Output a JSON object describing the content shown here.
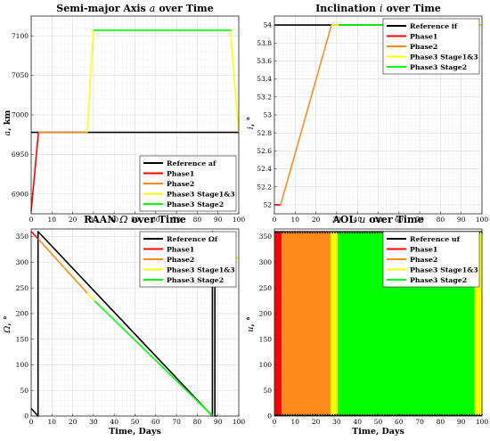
{
  "colors": {
    "reference": "#000000",
    "phase1": "#ff0000",
    "phase2": "#ff8c1a",
    "phase3_stage13": "#ffff00",
    "phase3_stage2": "#00ff00"
  },
  "chart_data": [
    {
      "type": "line",
      "title": "Semi-major Axis a over Time",
      "title_parts": [
        "Semi-major Axis",
        "a",
        "over Time"
      ],
      "xlabel": "",
      "ylabel": "a, km",
      "ylabel_parts": [
        "a",
        ", km"
      ],
      "xlim": [
        0,
        100
      ],
      "ylim": [
        6875,
        7125
      ],
      "xticks": [
        0,
        10,
        20,
        30,
        40,
        50,
        60,
        70,
        80,
        90,
        100
      ],
      "yticks": [
        6900,
        6950,
        7000,
        7050,
        7100
      ],
      "grid": true,
      "legend": "bottom-right",
      "legend_entries": [
        "Reference af",
        "Phase1",
        "Phase2",
        "Phase3 Stage1&3",
        "Phase3 Stage2"
      ],
      "series": [
        {
          "name": "Reference af",
          "color": "reference",
          "x": [
            0,
            100
          ],
          "y": [
            6978,
            6978
          ]
        },
        {
          "name": "Phase1",
          "color": "phase1",
          "x": [
            0,
            3.5
          ],
          "y": [
            6878,
            6978
          ]
        },
        {
          "name": "Phase2",
          "color": "phase2",
          "x": [
            3.5,
            27
          ],
          "y": [
            6978,
            6978
          ]
        },
        {
          "name": "Phase3 Stage1&3",
          "color": "phase3_stage13",
          "x": [
            27,
            30,
            null,
            96,
            100
          ],
          "y": [
            6978,
            7107,
            null,
            7107,
            6978
          ]
        },
        {
          "name": "Phase3 Stage2",
          "color": "phase3_stage2",
          "x": [
            30,
            96
          ],
          "y": [
            7107,
            7107
          ]
        }
      ]
    },
    {
      "type": "line",
      "title": "Inclination i over Time",
      "title_parts": [
        "Inclination",
        "i",
        "over Time"
      ],
      "xlabel": "",
      "ylabel": "i, °",
      "ylabel_parts": [
        "i",
        ", °"
      ],
      "xlim": [
        0,
        100
      ],
      "ylim": [
        51.9,
        54.1
      ],
      "xticks": [
        0,
        10,
        20,
        30,
        40,
        50,
        60,
        70,
        80,
        90,
        100
      ],
      "yticks": [
        52,
        52.2,
        52.4,
        52.6,
        52.8,
        53,
        53.2,
        53.4,
        53.6,
        53.8,
        54
      ],
      "grid": true,
      "legend": "top-right",
      "legend_entries": [
        "Reference if",
        "Phase1",
        "Phase2",
        "Phase3 Stage1&3",
        "Phase3 Stage2"
      ],
      "series": [
        {
          "name": "Reference if",
          "color": "reference",
          "x": [
            0,
            100
          ],
          "y": [
            54,
            54
          ]
        },
        {
          "name": "Phase1",
          "color": "phase1",
          "x": [
            0,
            3
          ],
          "y": [
            52,
            52
          ]
        },
        {
          "name": "Phase2",
          "color": "phase2",
          "x": [
            3,
            27.5
          ],
          "y": [
            52,
            54
          ]
        },
        {
          "name": "Phase3 Stage1&3",
          "color": "phase3_stage13",
          "x": [
            27.5,
            31,
            null,
            97,
            100
          ],
          "y": [
            54,
            54,
            null,
            54,
            54
          ]
        },
        {
          "name": "Phase3 Stage2",
          "color": "phase3_stage2",
          "x": [
            31,
            97
          ],
          "y": [
            54,
            54
          ]
        }
      ]
    },
    {
      "type": "line",
      "title": "RAAN Ω over Time",
      "title_parts": [
        "RAAN",
        "Ω",
        "over Time"
      ],
      "xlabel": "Time, Days",
      "ylabel": "Ω, °",
      "ylabel_parts": [
        "Ω",
        ", °"
      ],
      "xlim": [
        0,
        100
      ],
      "ylim": [
        0,
        365
      ],
      "xticks": [
        0,
        10,
        20,
        30,
        40,
        50,
        60,
        70,
        80,
        90,
        100
      ],
      "yticks": [
        0,
        50,
        100,
        150,
        200,
        250,
        300,
        350
      ],
      "grid": true,
      "legend": "top-right",
      "legend_entries": [
        "Reference Ωf",
        "Phase1",
        "Phase2",
        "Phase3 Stage1&3",
        "Phase3 Stage2"
      ],
      "series": [
        {
          "name": "Reference Ωf",
          "color": "reference",
          "x": [
            0,
            3.3,
            3.3,
            87.3,
            87.3,
            88.5,
            88.5,
            89.5
          ],
          "y": [
            15,
            0,
            360,
            0,
            360,
            355,
            0,
            0
          ]
        },
        {
          "name": "Phase1",
          "color": "phase1",
          "x": [
            0,
            3.5
          ],
          "y": [
            360,
            345
          ]
        },
        {
          "name": "Phase2",
          "color": "phase2",
          "x": [
            3.5,
            27
          ],
          "y": [
            345,
            240
          ]
        },
        {
          "name": "Phase3 Stage1&3",
          "color": "phase3_stage13",
          "x": [
            27,
            30.5,
            null,
            96,
            100
          ],
          "y": [
            240,
            225,
            null,
            320,
            305
          ]
        },
        {
          "name": "Phase3 Stage2",
          "color": "phase3_stage2",
          "x": [
            30.5,
            87.5,
            null,
            88.5,
            96
          ],
          "y": [
            225,
            0,
            null,
            355,
            320
          ]
        }
      ]
    },
    {
      "type": "line",
      "title": "AOL u over Time",
      "title_parts": [
        "AOL",
        "u",
        "over Time"
      ],
      "xlabel": "Time, Days",
      "ylabel": "u, °",
      "ylabel_parts": [
        "u",
        ", °"
      ],
      "xlim": [
        0,
        100
      ],
      "ylim": [
        0,
        365
      ],
      "xticks": [
        0,
        10,
        20,
        30,
        40,
        50,
        60,
        70,
        80,
        90,
        100
      ],
      "yticks": [
        0,
        50,
        100,
        150,
        200,
        250,
        300,
        350
      ],
      "grid": true,
      "legend": "top-right",
      "legend_entries": [
        "Reference uf",
        "Phase1",
        "Phase2",
        "Phase3 Stage1&3",
        "Phase3 Stage2"
      ],
      "bands": [
        {
          "name": "Phase1",
          "color": "phase1",
          "x0": 0,
          "x1": 3.5
        },
        {
          "name": "Phase2",
          "color": "phase2",
          "x0": 3.5,
          "x1": 27
        },
        {
          "name": "Phase3 Stage1&3",
          "color": "phase3_stage13",
          "x0": 27,
          "x1": 30.5
        },
        {
          "name": "Phase3 Stage2",
          "color": "phase3_stage2",
          "x0": 30.5,
          "x1": 96.5
        },
        {
          "name": "Phase3 Stage1&3",
          "color": "phase3_stage13",
          "x0": 96.5,
          "x1": 100
        }
      ],
      "reference_oscillation": {
        "name": "Reference uf",
        "color": "reference",
        "range": [
          0,
          360
        ]
      }
    }
  ]
}
